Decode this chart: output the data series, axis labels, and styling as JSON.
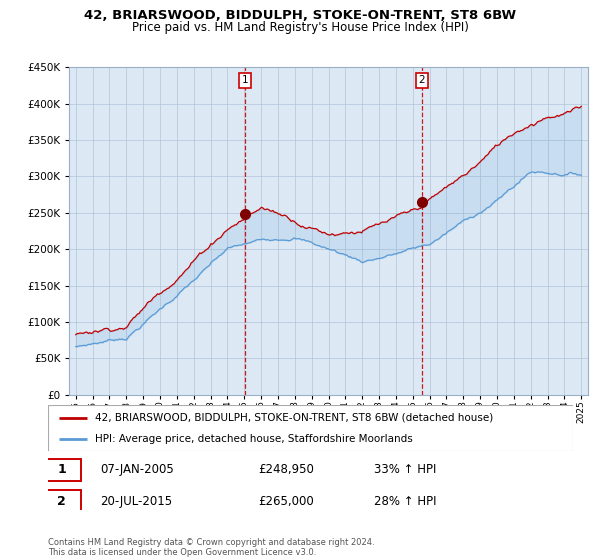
{
  "title": "42, BRIARSWOOD, BIDDULPH, STOKE-ON-TRENT, ST8 6BW",
  "subtitle": "Price paid vs. HM Land Registry's House Price Index (HPI)",
  "legend_line1": "42, BRIARSWOOD, BIDDULPH, STOKE-ON-TRENT, ST8 6BW (detached house)",
  "legend_line2": "HPI: Average price, detached house, Staffordshire Moorlands",
  "transaction1_date": "07-JAN-2005",
  "transaction1_price": "£248,950",
  "transaction1_hpi": "33% ↑ HPI",
  "transaction2_date": "20-JUL-2015",
  "transaction2_price": "£265,000",
  "transaction2_hpi": "28% ↑ HPI",
  "footer": "Contains HM Land Registry data © Crown copyright and database right 2024.\nThis data is licensed under the Open Government Licence v3.0.",
  "hpi_color": "#5b9bd5",
  "price_color": "#c00000",
  "vline_color": "#cc0000",
  "marker_color": "#800000",
  "bg_color": "#dce9f5",
  "grid_color": "#b0c4d8",
  "ylim": [
    0,
    450000
  ],
  "yticks": [
    0,
    50000,
    100000,
    150000,
    200000,
    250000,
    300000,
    350000,
    400000,
    450000
  ],
  "t1_year": 2005.03,
  "t1_price": 248950,
  "t2_year": 2015.55,
  "t2_price": 265000
}
